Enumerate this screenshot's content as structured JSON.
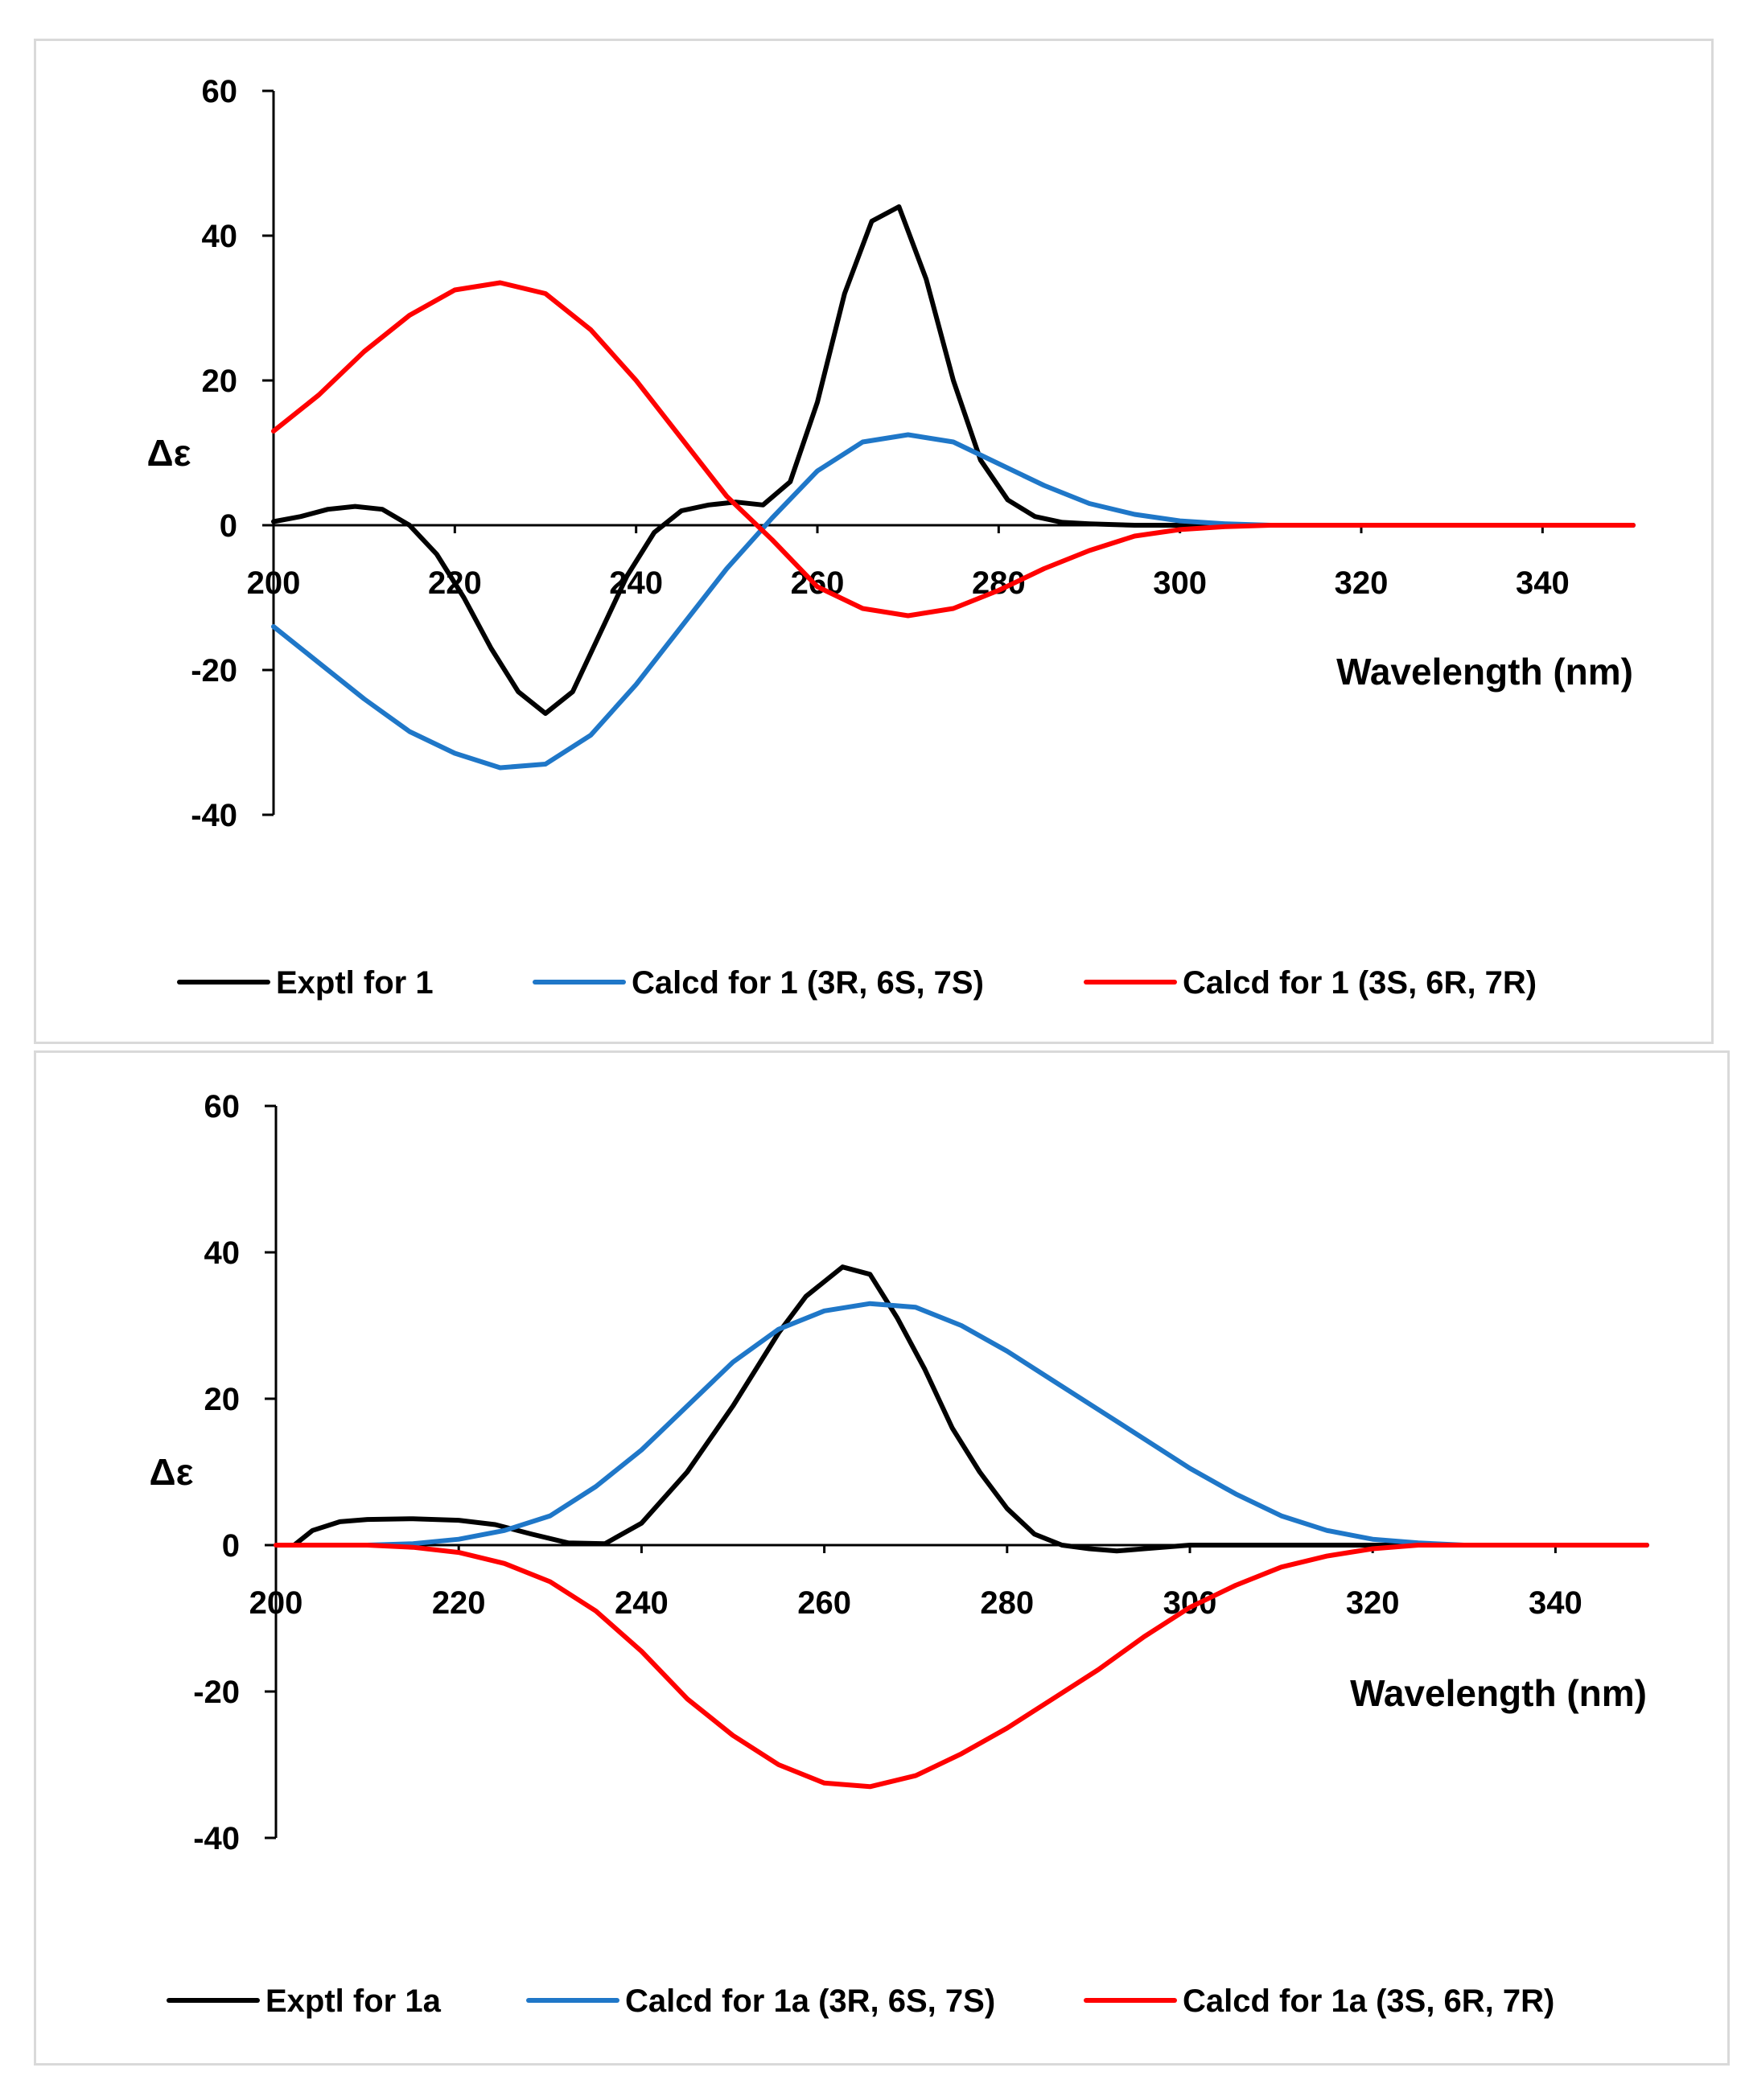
{
  "chart_data": [
    {
      "type": "line",
      "ylabel": "Δε",
      "xlabel": "Wavelength (nm)",
      "xlim": [
        200,
        350
      ],
      "ylim": [
        -40,
        60
      ],
      "xticks": [
        200,
        220,
        240,
        260,
        280,
        300,
        320,
        340
      ],
      "yticks": [
        60,
        40,
        20,
        0,
        -20,
        -40
      ],
      "legend_position": "bottom",
      "series": [
        {
          "name": "Exptl for 1",
          "color": "#000000",
          "x": [
            200,
            203,
            206,
            209,
            212,
            215,
            218,
            221,
            224,
            227,
            230,
            233,
            236,
            239,
            242,
            245,
            248,
            251,
            254,
            257,
            260,
            263,
            266,
            269,
            272,
            275,
            278,
            281,
            284,
            287,
            290,
            295,
            300,
            310,
            320,
            330,
            340,
            350
          ],
          "y": [
            0.5,
            1.2,
            2.2,
            2.6,
            2.2,
            0,
            -4,
            -10,
            -17,
            -23,
            -26,
            -23,
            -15,
            -7,
            -1,
            2,
            2.8,
            3.2,
            2.8,
            6,
            17,
            32,
            42,
            44,
            34,
            20,
            9,
            3.5,
            1.2,
            0.4,
            0.2,
            0,
            0,
            0,
            0,
            0,
            0,
            0
          ]
        },
        {
          "name": "Calcd for 1 (3R, 6S, 7S)",
          "color": "#1f77c8",
          "x": [
            200,
            205,
            210,
            215,
            220,
            225,
            230,
            235,
            240,
            245,
            250,
            255,
            260,
            265,
            270,
            275,
            280,
            285,
            290,
            295,
            300,
            305,
            310,
            320,
            330,
            340,
            350
          ],
          "y": [
            -14,
            -19,
            -24,
            -28.5,
            -31.5,
            -33.5,
            -33,
            -29,
            -22,
            -14,
            -6,
            1,
            7.5,
            11.5,
            12.5,
            11.5,
            8.5,
            5.5,
            3,
            1.5,
            0.6,
            0.2,
            0,
            0,
            0,
            0,
            0
          ]
        },
        {
          "name": "Calcd for 1 (3S, 6R, 7R)",
          "color": "#ff0000",
          "x": [
            200,
            205,
            210,
            215,
            220,
            225,
            230,
            235,
            240,
            245,
            250,
            255,
            260,
            265,
            270,
            275,
            280,
            285,
            290,
            295,
            300,
            305,
            310,
            320,
            330,
            340,
            350
          ],
          "y": [
            13,
            18,
            24,
            29,
            32.5,
            33.5,
            32,
            27,
            20,
            12,
            4,
            -2,
            -8.5,
            -11.5,
            -12.5,
            -11.5,
            -9,
            -6,
            -3.5,
            -1.5,
            -0.6,
            -0.2,
            0,
            0,
            0,
            0,
            0
          ]
        }
      ]
    },
    {
      "type": "line",
      "ylabel": "Δε",
      "xlabel": "Wavelength (nm)",
      "xlim": [
        200,
        350
      ],
      "ylim": [
        -40,
        60
      ],
      "xticks": [
        200,
        220,
        240,
        260,
        280,
        300,
        320,
        340
      ],
      "yticks": [
        60,
        40,
        20,
        0,
        -20,
        -40
      ],
      "legend_position": "bottom",
      "series": [
        {
          "name": "Exptl for 1a",
          "color": "#000000",
          "x": [
            200,
            202,
            204,
            207,
            210,
            215,
            220,
            224,
            228,
            232,
            236,
            240,
            245,
            250,
            255,
            258,
            262,
            265,
            268,
            271,
            274,
            277,
            280,
            283,
            286,
            289,
            292,
            295,
            300,
            310,
            320,
            330,
            340,
            350
          ],
          "y": [
            0,
            0,
            2,
            3.2,
            3.5,
            3.6,
            3.4,
            2.8,
            1.5,
            0.3,
            0.2,
            3,
            10,
            19,
            29,
            34,
            38,
            37,
            31,
            24,
            16,
            10,
            5,
            1.5,
            0,
            -0.5,
            -0.8,
            -0.5,
            0,
            0,
            0,
            0,
            0,
            0
          ]
        },
        {
          "name": "Calcd for 1a (3R, 6S, 7S)",
          "color": "#1f77c8",
          "x": [
            200,
            210,
            215,
            220,
            225,
            230,
            235,
            240,
            245,
            250,
            255,
            260,
            265,
            270,
            275,
            280,
            285,
            290,
            295,
            300,
            305,
            310,
            315,
            320,
            325,
            330,
            340,
            350
          ],
          "y": [
            0,
            0,
            0.2,
            0.8,
            2,
            4,
            8,
            13,
            19,
            25,
            29.5,
            32,
            33,
            32.5,
            30,
            26.5,
            22.5,
            18.5,
            14.5,
            10.5,
            7,
            4,
            2,
            0.8,
            0.3,
            0,
            0,
            0
          ]
        },
        {
          "name": "Calcd for 1a (3S, 6R, 7R)",
          "color": "#ff0000",
          "x": [
            200,
            210,
            215,
            220,
            225,
            230,
            235,
            240,
            245,
            250,
            255,
            260,
            265,
            270,
            275,
            280,
            285,
            290,
            295,
            300,
            305,
            310,
            315,
            320,
            325,
            330,
            340,
            350
          ],
          "y": [
            0,
            0,
            -0.3,
            -1,
            -2.5,
            -5,
            -9,
            -14.5,
            -21,
            -26,
            -30,
            -32.5,
            -33,
            -31.5,
            -28.5,
            -25,
            -21,
            -17,
            -12.5,
            -8.5,
            -5.5,
            -3,
            -1.5,
            -0.5,
            0,
            0,
            0,
            0
          ]
        }
      ]
    }
  ]
}
